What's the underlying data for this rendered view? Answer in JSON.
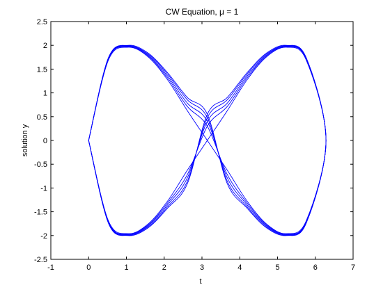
{
  "chart_data": {
    "type": "line",
    "title": "CW Equation, μ = 1",
    "xlabel": "t",
    "ylabel": "solution y",
    "xlim": [
      -1,
      7
    ],
    "ylim": [
      -2.5,
      2.5
    ],
    "xticks": [
      -1,
      0,
      1,
      2,
      3,
      4,
      5,
      6,
      7
    ],
    "yticks": [
      2.5,
      2,
      1.5,
      1,
      0.5,
      0,
      -0.5,
      -1,
      -1.5,
      -2,
      -2.5
    ],
    "grid": false,
    "line_color": "#0000ff",
    "series": [
      {
        "x": [
          0,
          0.5236,
          1.0472,
          1.5708,
          2.0944,
          2.618,
          3.1416,
          3.6652,
          4.1888,
          4.7124,
          5.236,
          5.7596,
          6.2832,
          5.7596,
          5.236,
          4.7124,
          4.1888,
          3.6652,
          3.1416,
          2.618,
          2.0944,
          1.5708,
          1.0472,
          0.5236,
          0
        ],
        "y": [
          0,
          1.69,
          1.96,
          1.76,
          1.27,
          0.62,
          0.0,
          -0.62,
          -1.27,
          -1.76,
          -1.96,
          -1.69,
          0,
          1.69,
          1.96,
          1.76,
          1.27,
          0.62,
          0.0,
          -0.62,
          -1.27,
          -1.76,
          -1.96,
          -1.69,
          0
        ]
      },
      {
        "x": [
          0,
          0.5236,
          1.0472,
          1.5708,
          2.0944,
          2.618,
          3.1416,
          3.6652,
          4.1888,
          4.7124,
          5.236,
          5.7596,
          6.2832,
          5.7596,
          5.236,
          4.7124,
          4.1888,
          3.6652,
          3.1416,
          2.618,
          2.0944,
          1.5708,
          1.0472,
          0.5236,
          0
        ],
        "y": [
          0,
          1.71,
          1.97,
          1.78,
          1.31,
          0.71,
          0.3,
          -0.71,
          -1.31,
          -1.78,
          -1.97,
          -1.71,
          0,
          1.71,
          1.97,
          1.78,
          1.31,
          0.71,
          0.3,
          -0.71,
          -1.31,
          -1.78,
          -1.97,
          -1.71,
          0
        ]
      },
      {
        "x": [
          0,
          0.5236,
          1.0472,
          1.5708,
          2.0944,
          2.618,
          3.1416,
          3.6652,
          4.1888,
          4.7124,
          5.236,
          5.7596,
          6.2832,
          5.7596,
          5.236,
          4.7124,
          4.1888,
          3.6652,
          3.1416,
          2.618,
          2.0944,
          1.5708,
          1.0472,
          0.5236,
          0
        ],
        "y": [
          0,
          1.72,
          1.98,
          1.8,
          1.35,
          0.78,
          0.4,
          -0.78,
          -1.35,
          -1.8,
          -1.98,
          -1.72,
          0,
          1.72,
          1.98,
          1.8,
          1.35,
          0.78,
          0.4,
          -0.78,
          -1.35,
          -1.8,
          -1.98,
          -1.72,
          0
        ]
      },
      {
        "x": [
          0,
          0.5236,
          1.0472,
          1.5708,
          2.0944,
          2.618,
          3.1416,
          3.6652,
          4.1888,
          4.7124,
          5.236,
          5.7596,
          6.2832,
          5.7596,
          5.236,
          4.7124,
          4.1888,
          3.6652,
          3.1416,
          2.618,
          2.0944,
          1.5708,
          1.0472,
          0.5236,
          0
        ],
        "y": [
          0,
          1.73,
          1.99,
          1.82,
          1.39,
          0.85,
          0.48,
          -0.85,
          -1.39,
          -1.82,
          -1.99,
          -1.73,
          0,
          1.73,
          1.99,
          1.82,
          1.39,
          0.85,
          0.48,
          -0.85,
          -1.39,
          -1.82,
          -1.99,
          -1.73,
          0
        ]
      },
      {
        "x": [
          0,
          0.5236,
          1.0472,
          1.5708,
          2.0944,
          2.618,
          3.1416,
          3.6652,
          4.1888,
          4.7124,
          5.236,
          5.7596,
          6.2832,
          5.7596,
          5.236,
          4.7124,
          4.1888,
          3.6652,
          3.1416,
          2.618,
          2.0944,
          1.5708,
          1.0472,
          0.5236,
          0
        ],
        "y": [
          0,
          1.74,
          2.0,
          1.84,
          1.42,
          0.9,
          0.55,
          -0.9,
          -1.42,
          -1.84,
          -2.0,
          -1.74,
          0,
          1.74,
          2.0,
          1.84,
          1.42,
          0.9,
          0.55,
          -0.9,
          -1.42,
          -1.84,
          -2.0,
          -1.74,
          0
        ]
      }
    ]
  }
}
